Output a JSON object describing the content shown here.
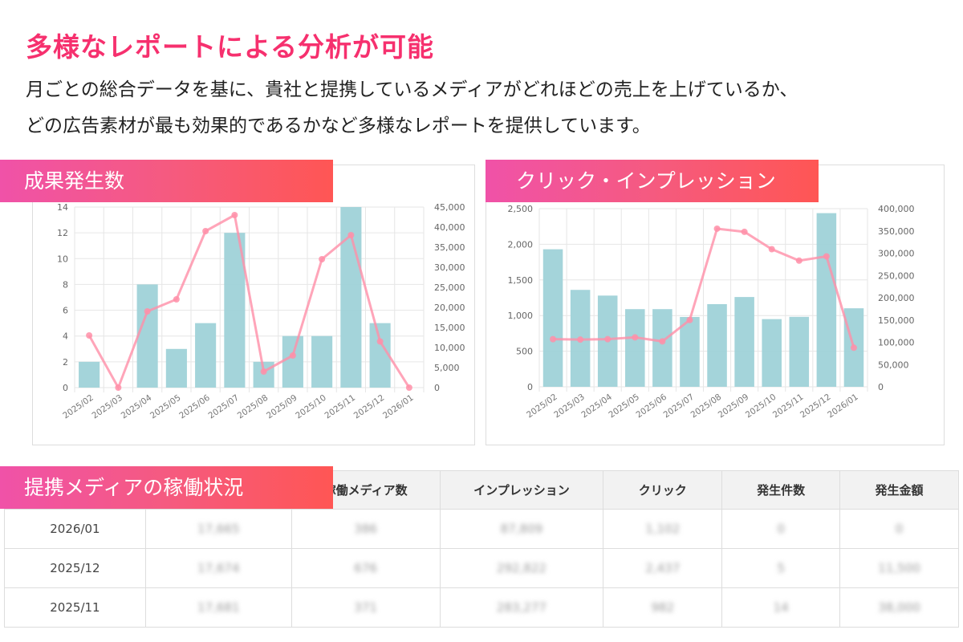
{
  "header": {
    "title": "多様なレポートによる分析が可能",
    "description_lines": [
      "月ごとの総合データを基に、貴社と提携しているメディアがどれほどの売上を上げているか、",
      "どの広告素材が最も効果的であるかなど多様なレポートを提供しています。"
    ]
  },
  "colors": {
    "accent": "#f6306e",
    "bar": "#9fd2d8",
    "line": "#ff8fa8"
  },
  "chart_data": [
    {
      "title": "成果発生数",
      "type": "bar+line",
      "categories": [
        "2025/02",
        "2025/03",
        "2025/04",
        "2025/05",
        "2025/06",
        "2025/07",
        "2025/08",
        "2025/09",
        "2025/10",
        "2025/11",
        "2025/12",
        "2026/01"
      ],
      "y_left": {
        "range": [
          0,
          14
        ],
        "ticks": [
          "0",
          "2",
          "4",
          "6",
          "8",
          "10",
          "12",
          "14"
        ]
      },
      "y_right": {
        "range": [
          0,
          45000
        ],
        "ticks": [
          "0",
          "5,000",
          "10,000",
          "15,000",
          "20,000",
          "25,000",
          "30,000",
          "35,000",
          "40,000",
          "45,000"
        ]
      },
      "series": [
        {
          "type": "bar",
          "axis": "left",
          "values": [
            2,
            0,
            8,
            3,
            5,
            12,
            2,
            4,
            4,
            14,
            5,
            0
          ]
        },
        {
          "type": "line",
          "axis": "right",
          "values": [
            13000,
            0,
            19000,
            22000,
            39000,
            43000,
            4000,
            8000,
            32000,
            38000,
            11500,
            0
          ]
        }
      ],
      "grid": true
    },
    {
      "title": "クリック・インプレッション",
      "type": "bar+line",
      "categories": [
        "2025/02",
        "2025/03",
        "2025/04",
        "2025/05",
        "2025/06",
        "2025/07",
        "2025/08",
        "2025/09",
        "2025/10",
        "2025/11",
        "2025/12",
        "2026/01"
      ],
      "y_left": {
        "range": [
          0,
          2500
        ],
        "ticks": [
          "0",
          "500",
          "1,000",
          "1,500",
          "2,000",
          "2,500"
        ]
      },
      "y_right": {
        "range": [
          0,
          400000
        ],
        "ticks": [
          "0",
          "50,000",
          "100,000",
          "150,000",
          "200,000",
          "250,000",
          "300,000",
          "350,000",
          "400,000"
        ]
      },
      "series": [
        {
          "type": "bar",
          "axis": "left",
          "values": [
            1930,
            1360,
            1280,
            1090,
            1090,
            980,
            1160,
            1260,
            950,
            982,
            2437,
            1102
          ]
        },
        {
          "type": "line",
          "axis": "right",
          "values": [
            107000,
            106000,
            107000,
            111000,
            102000,
            150000,
            355000,
            348000,
            309000,
            283277,
            292822,
            87809
          ]
        }
      ],
      "grid": true
    }
  ],
  "table": {
    "title": "提携メディアの稼働状況",
    "columns": [
      "",
      "",
      "稼働メディア数",
      "インプレッション",
      "クリック",
      "発生件数",
      "発生金額"
    ],
    "rows": [
      [
        "2026/01",
        "17,665",
        "386",
        "87,809",
        "1,102",
        "0",
        "0"
      ],
      [
        "2025/12",
        "17,674",
        "676",
        "292,822",
        "2,437",
        "5",
        "11,500"
      ],
      [
        "2025/11",
        "17,681",
        "371",
        "283,277",
        "982",
        "14",
        "38,000"
      ]
    ]
  }
}
